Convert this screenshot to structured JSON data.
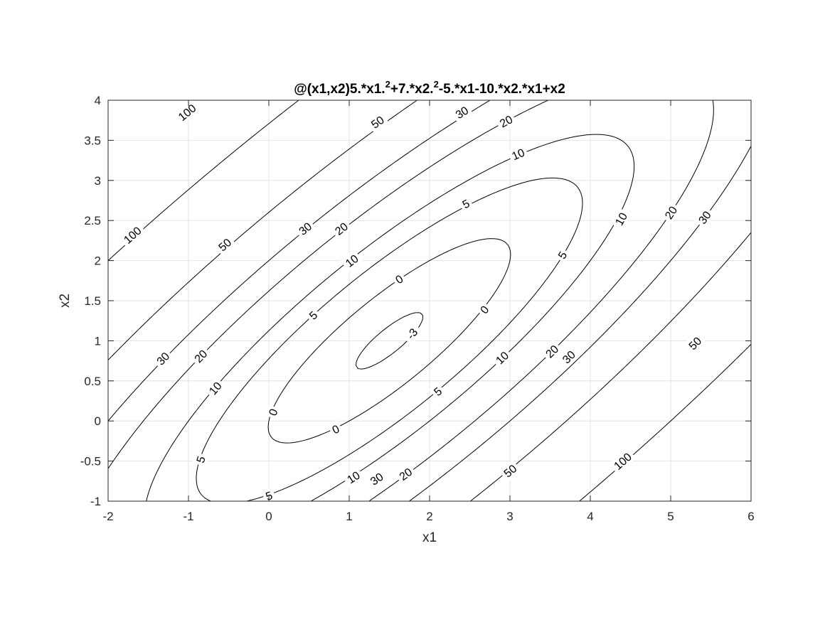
{
  "chart_data": {
    "type": "contour",
    "title": {
      "segments": [
        {
          "text": "@(x1,x2)5.*x1.",
          "sup": false
        },
        {
          "text": "2",
          "sup": true
        },
        {
          "text": "+7.*x2.",
          "sup": false
        },
        {
          "text": "2",
          "sup": true
        },
        {
          "text": "-5.*x1-10.*x2.*x1+x2",
          "sup": false
        }
      ]
    },
    "function": {
      "a": 5,
      "b": 7,
      "c": -5,
      "d": -10,
      "e": 1
    },
    "xlabel": "x1",
    "ylabel": "x2",
    "xlim": [
      -2,
      6
    ],
    "ylim": [
      -1,
      4
    ],
    "xticks": [
      -2,
      -1,
      0,
      1,
      2,
      3,
      4,
      5,
      6
    ],
    "yticks": [
      -1,
      -0.5,
      0,
      0.5,
      1,
      1.5,
      2,
      2.5,
      3,
      3.5,
      4
    ],
    "xtick_labels": [
      "-2",
      "-1",
      "0",
      "1",
      "2",
      "3",
      "4",
      "5",
      "6"
    ],
    "ytick_labels": [
      "-1",
      "-0.5",
      "0",
      "0.5",
      "1",
      "1.5",
      "2",
      "2.5",
      "3",
      "3.5",
      "4"
    ],
    "levels": [
      -3,
      0,
      5,
      10,
      20,
      30,
      50,
      100
    ],
    "level_labels": [
      {
        "text": "100",
        "x": -1.02,
        "y": 3.85
      },
      {
        "text": "100",
        "x": -1.7,
        "y": 2.32
      },
      {
        "text": "100",
        "x": 4.4,
        "y": -0.5
      },
      {
        "text": "50",
        "x": 1.35,
        "y": 3.73
      },
      {
        "text": "50",
        "x": -0.55,
        "y": 2.2
      },
      {
        "text": "50",
        "x": 3.0,
        "y": -0.62
      },
      {
        "text": "50",
        "x": 5.3,
        "y": 0.97
      },
      {
        "text": "30",
        "x": 2.4,
        "y": 3.85
      },
      {
        "text": "30",
        "x": 0.45,
        "y": 2.4
      },
      {
        "text": "30",
        "x": -1.32,
        "y": 0.78
      },
      {
        "text": "30",
        "x": 1.34,
        "y": -0.72
      },
      {
        "text": "30",
        "x": 3.73,
        "y": 0.8
      },
      {
        "text": "30",
        "x": 5.42,
        "y": 2.54
      },
      {
        "text": "20",
        "x": 2.95,
        "y": 3.74
      },
      {
        "text": "20",
        "x": 0.9,
        "y": 2.4
      },
      {
        "text": "20",
        "x": -0.85,
        "y": 0.81
      },
      {
        "text": "20",
        "x": 1.7,
        "y": -0.66
      },
      {
        "text": "20",
        "x": 3.52,
        "y": 0.87
      },
      {
        "text": "20",
        "x": 5.0,
        "y": 2.6
      },
      {
        "text": "10",
        "x": 3.1,
        "y": 3.33
      },
      {
        "text": "10",
        "x": 1.03,
        "y": 2.0
      },
      {
        "text": "10",
        "x": -0.67,
        "y": 0.41
      },
      {
        "text": "10",
        "x": 1.05,
        "y": -0.7
      },
      {
        "text": "10",
        "x": 2.9,
        "y": 0.79
      },
      {
        "text": "10",
        "x": 4.38,
        "y": 2.52
      },
      {
        "text": "5",
        "x": 2.45,
        "y": 2.71
      },
      {
        "text": "5",
        "x": 0.55,
        "y": 1.32
      },
      {
        "text": "5",
        "x": -0.85,
        "y": -0.48
      },
      {
        "text": "5",
        "x": 0.0,
        "y": -0.93
      },
      {
        "text": "5",
        "x": 2.1,
        "y": 0.37
      },
      {
        "text": "5",
        "x": 3.65,
        "y": 2.07
      },
      {
        "text": "0",
        "x": 1.62,
        "y": 1.77
      },
      {
        "text": "0",
        "x": 0.05,
        "y": 0.11
      },
      {
        "text": "0",
        "x": 0.83,
        "y": -0.1
      },
      {
        "text": "0",
        "x": 2.68,
        "y": 1.39
      },
      {
        "text": "-3",
        "x": 1.78,
        "y": 1.09
      }
    ],
    "grid": true
  }
}
